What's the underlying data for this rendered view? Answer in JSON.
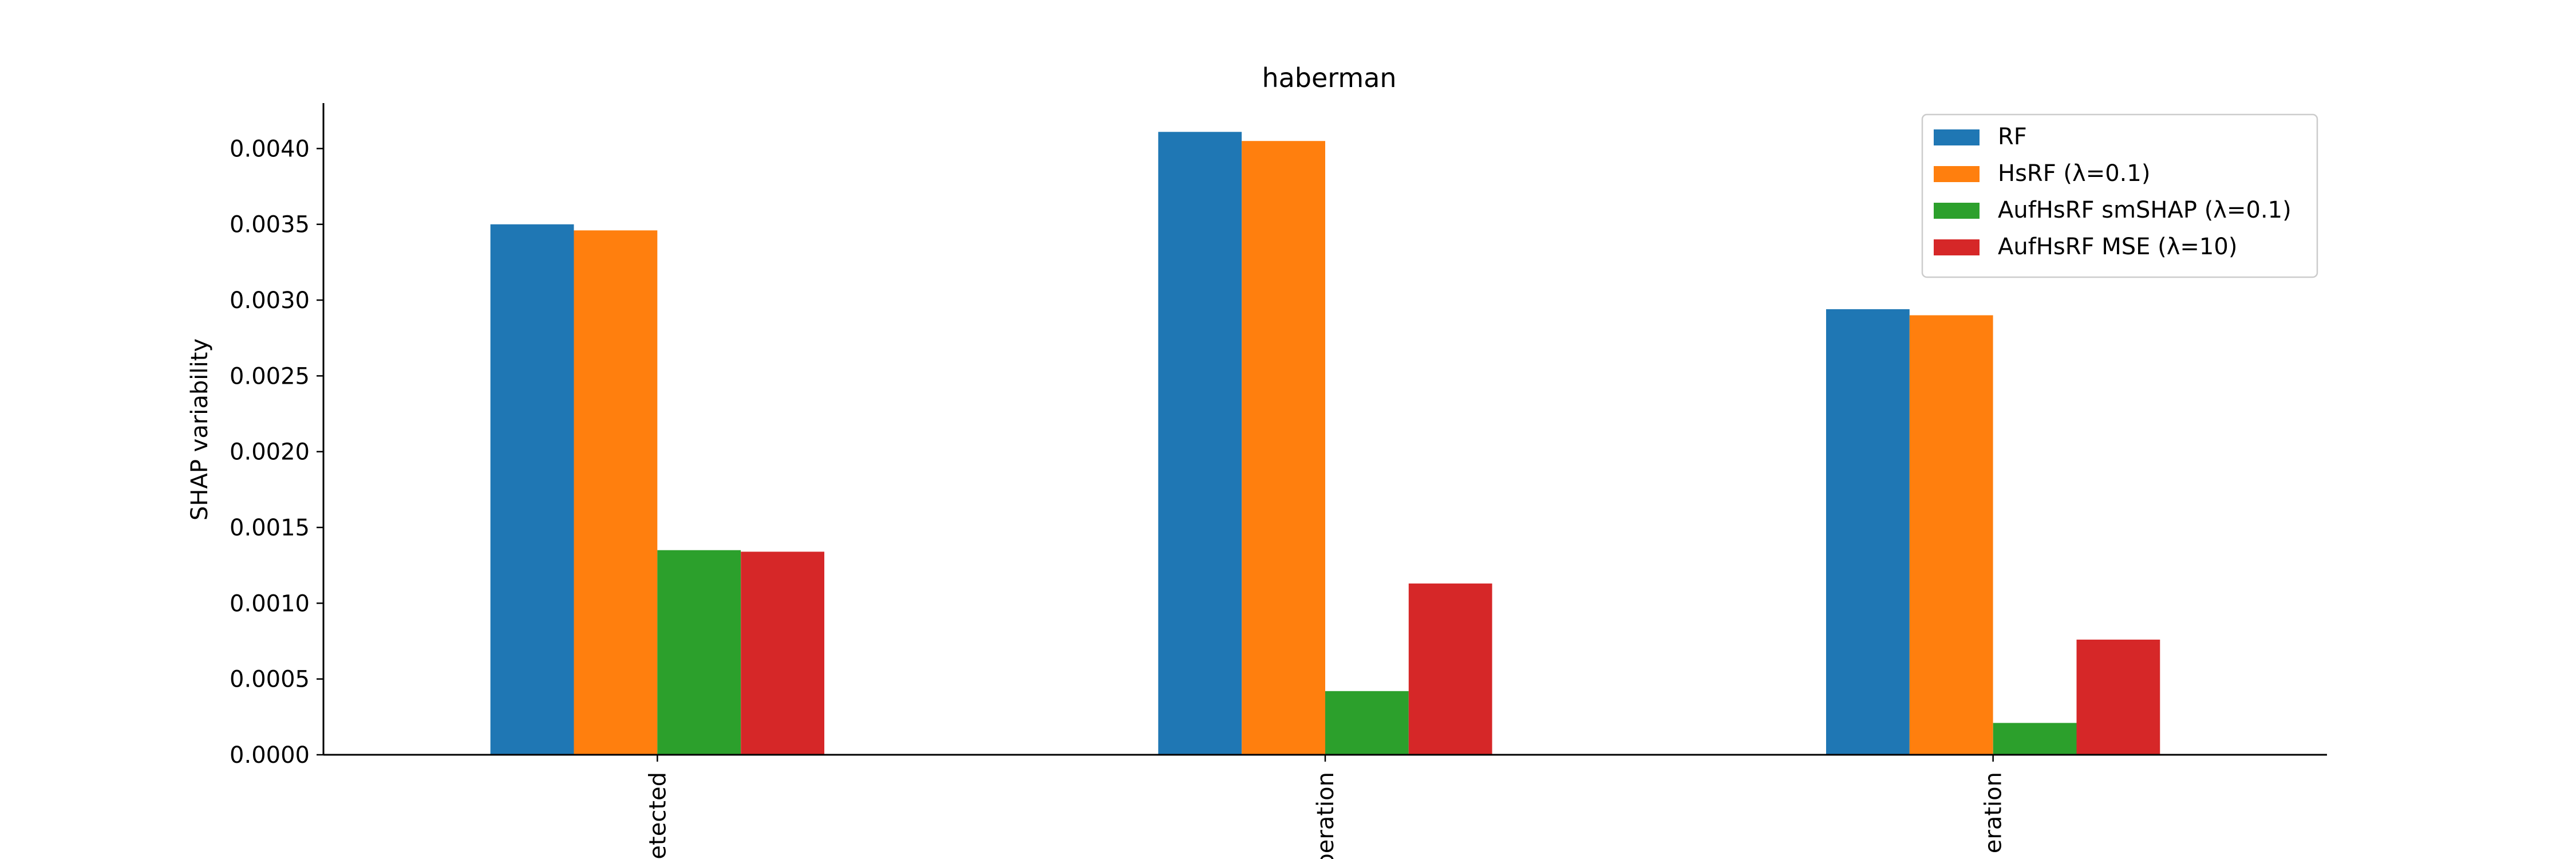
{
  "chart_data": {
    "type": "bar",
    "title": "haberman",
    "xlabel": "",
    "ylabel": "SHAP variability",
    "ylim": [
      0,
      0.0043
    ],
    "yticks": [
      "0.0000",
      "0.0005",
      "0.0010",
      "0.0015",
      "0.0020",
      "0.0025",
      "0.0030",
      "0.0035",
      "0.0040"
    ],
    "categories": [
      "etected",
      "peration",
      "eration"
    ],
    "grid": false,
    "legend_position": "top-right",
    "series": [
      {
        "name": "RF",
        "color": "#1f77b4",
        "values": [
          0.0035,
          0.00411,
          0.00294
        ]
      },
      {
        "name": "HsRF (λ=0.1)",
        "color": "#ff7f0e",
        "values": [
          0.00346,
          0.00405,
          0.0029
        ]
      },
      {
        "name": "AufHsRF smSHAP (λ=0.1)",
        "color": "#2ca02c",
        "values": [
          0.00135,
          0.00042,
          0.00021
        ]
      },
      {
        "name": "AufHsRF MSE (λ=10)",
        "color": "#d62728",
        "values": [
          0.00134,
          0.00113,
          0.00076
        ]
      }
    ]
  }
}
